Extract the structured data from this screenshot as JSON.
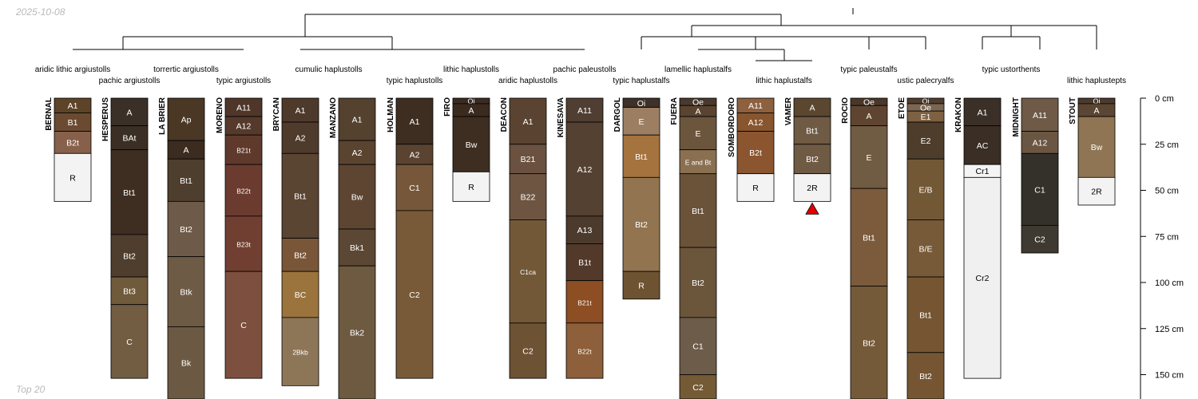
{
  "date_label": "2025-10-08",
  "footer_label": "Top 20",
  "depth_axis": {
    "unit": "cm",
    "max_depth": 170,
    "ticks": [
      {
        "depth": 0,
        "label": "0 cm"
      },
      {
        "depth": 25,
        "label": "25 cm"
      },
      {
        "depth": 50,
        "label": "50 cm"
      },
      {
        "depth": 75,
        "label": "75 cm"
      },
      {
        "depth": 100,
        "label": "100 cm"
      },
      {
        "depth": 125,
        "label": "125 cm"
      },
      {
        "depth": 150,
        "label": "150 cm"
      }
    ]
  },
  "taxa": [
    {
      "label": "aridic lithic argiustolls",
      "row": 1,
      "members": [
        0
      ]
    },
    {
      "label": "pachic argiustolls",
      "row": 2,
      "members": [
        1
      ]
    },
    {
      "label": "torrertic argiustolls",
      "row": 1,
      "members": [
        2
      ]
    },
    {
      "label": "typic argiustolls",
      "row": 2,
      "members": [
        3
      ]
    },
    {
      "label": "cumulic haplustolls",
      "row": 1,
      "members": [
        4,
        5
      ]
    },
    {
      "label": "typic haplustolls",
      "row": 2,
      "members": [
        6
      ]
    },
    {
      "label": "lithic haplustolls",
      "row": 1,
      "members": [
        7
      ]
    },
    {
      "label": "aridic haplustolls",
      "row": 2,
      "members": [
        8
      ]
    },
    {
      "label": "pachic paleustolls",
      "row": 1,
      "members": [
        9
      ]
    },
    {
      "label": "typic haplustalfs",
      "row": 2,
      "members": [
        10
      ]
    },
    {
      "label": "lamellic haplustalfs",
      "row": 1,
      "members": [
        11
      ]
    },
    {
      "label": "lithic haplustalfs",
      "row": 2,
      "members": [
        12,
        13
      ]
    },
    {
      "label": "typic paleustalfs",
      "row": 1,
      "members": [
        14
      ]
    },
    {
      "label": "ustic palecryalfs",
      "row": 2,
      "members": [
        15
      ]
    },
    {
      "label": "typic ustorthents",
      "row": 1,
      "members": [
        16,
        17
      ]
    },
    {
      "label": "lithic haplustepts",
      "row": 2,
      "members": [
        18
      ]
    }
  ],
  "profiles": [
    {
      "name": "BERNAL",
      "horizons": [
        {
          "name": "A1",
          "top": 0,
          "bottom": 8,
          "color": "#5d4328"
        },
        {
          "name": "B1",
          "top": 8,
          "bottom": 18,
          "color": "#6a4a31"
        },
        {
          "name": "B2t",
          "top": 18,
          "bottom": 30,
          "color": "#86604a"
        },
        {
          "name": "R",
          "top": 30,
          "bottom": 56,
          "color": "#f3f3f3"
        }
      ]
    },
    {
      "name": "HESPERUS",
      "horizons": [
        {
          "name": "A",
          "top": 0,
          "bottom": 15,
          "color": "#3a3028"
        },
        {
          "name": "BAt",
          "top": 15,
          "bottom": 28,
          "color": "#3b2f25"
        },
        {
          "name": "Bt1",
          "top": 28,
          "bottom": 74,
          "color": "#3e2e22"
        },
        {
          "name": "Bt2",
          "top": 74,
          "bottom": 97,
          "color": "#4f3e2d"
        },
        {
          "name": "Bt3",
          "top": 97,
          "bottom": 112,
          "color": "#705a3c"
        },
        {
          "name": "C",
          "top": 112,
          "bottom": 152,
          "color": "#725c42"
        }
      ]
    },
    {
      "name": "LA BRIER",
      "horizons": [
        {
          "name": "Ap",
          "top": 0,
          "bottom": 23,
          "color": "#4a3825"
        },
        {
          "name": "A",
          "top": 23,
          "bottom": 33,
          "color": "#3c2c1f"
        },
        {
          "name": "Bt1",
          "top": 33,
          "bottom": 56,
          "color": "#4e3e2e"
        },
        {
          "name": "Bt2",
          "top": 56,
          "bottom": 86,
          "color": "#6d5a48"
        },
        {
          "name": "Btk",
          "top": 86,
          "bottom": 124,
          "color": "#6e5b46"
        },
        {
          "name": "Bk",
          "top": 124,
          "bottom": 165,
          "color": "#6c5943"
        }
      ]
    },
    {
      "name": "MORENO",
      "horizons": [
        {
          "name": "A11",
          "top": 0,
          "bottom": 10,
          "color": "#4f3629"
        },
        {
          "name": "A12",
          "top": 10,
          "bottom": 20,
          "color": "#553a2b"
        },
        {
          "name": "B21t",
          "top": 20,
          "bottom": 36,
          "color": "#5f3a2c"
        },
        {
          "name": "B22t",
          "top": 36,
          "bottom": 64,
          "color": "#6c3b2f"
        },
        {
          "name": "B23t",
          "top": 64,
          "bottom": 94,
          "color": "#713f31"
        },
        {
          "name": "C",
          "top": 94,
          "bottom": 152,
          "color": "#7c4f3e"
        }
      ]
    },
    {
      "name": "BRYCAN",
      "horizons": [
        {
          "name": "A1",
          "top": 0,
          "bottom": 13,
          "color": "#4e3a2b"
        },
        {
          "name": "A2",
          "top": 13,
          "bottom": 30,
          "color": "#4f3b2c"
        },
        {
          "name": "Bt1",
          "top": 30,
          "bottom": 76,
          "color": "#5a4432"
        },
        {
          "name": "Bt2",
          "top": 76,
          "bottom": 94,
          "color": "#7a5638"
        },
        {
          "name": "BC",
          "top": 94,
          "bottom": 119,
          "color": "#9b733c"
        },
        {
          "name": "2Bkb",
          "top": 119,
          "bottom": 156,
          "color": "#8d7658"
        }
      ]
    },
    {
      "name": "MANZANO",
      "horizons": [
        {
          "name": "A1",
          "top": 0,
          "bottom": 23,
          "color": "#54412e"
        },
        {
          "name": "A2",
          "top": 23,
          "bottom": 36,
          "color": "#5a4430"
        },
        {
          "name": "Bw",
          "top": 36,
          "bottom": 71,
          "color": "#5e4532"
        },
        {
          "name": "Bk1",
          "top": 71,
          "bottom": 91,
          "color": "#5b4734"
        },
        {
          "name": "Bk2",
          "top": 91,
          "bottom": 170,
          "color": "#6e5a40"
        }
      ]
    },
    {
      "name": "HOLMAN",
      "horizons": [
        {
          "name": "A1",
          "top": 0,
          "bottom": 25,
          "color": "#3e2e22"
        },
        {
          "name": "A2",
          "top": 25,
          "bottom": 36,
          "color": "#5a4330"
        },
        {
          "name": "C1",
          "top": 36,
          "bottom": 61,
          "color": "#76573a"
        },
        {
          "name": "C2",
          "top": 61,
          "bottom": 152,
          "color": "#785a38"
        }
      ]
    },
    {
      "name": "FIRO",
      "horizons": [
        {
          "name": "Oi",
          "top": 0,
          "bottom": 3,
          "color": "#3a2c22"
        },
        {
          "name": "A",
          "top": 3,
          "bottom": 10,
          "color": "#3b2b1f"
        },
        {
          "name": "Bw",
          "top": 10,
          "bottom": 40,
          "color": "#3d2e21"
        },
        {
          "name": "R",
          "top": 40,
          "bottom": 56,
          "color": "#f3f3f3"
        }
      ]
    },
    {
      "name": "DEACON",
      "horizons": [
        {
          "name": "A1",
          "top": 0,
          "bottom": 25,
          "color": "#5a4431"
        },
        {
          "name": "B21",
          "top": 25,
          "bottom": 41,
          "color": "#6b5140"
        },
        {
          "name": "B22",
          "top": 41,
          "bottom": 66,
          "color": "#6e5542"
        },
        {
          "name": "C1ca",
          "top": 66,
          "bottom": 122,
          "color": "#735838"
        },
        {
          "name": "C2",
          "top": 122,
          "bottom": 152,
          "color": "#6d5234"
        }
      ]
    },
    {
      "name": "KINESAVA",
      "horizons": [
        {
          "name": "A11",
          "top": 0,
          "bottom": 13,
          "color": "#4f3e31"
        },
        {
          "name": "A12",
          "top": 13,
          "bottom": 64,
          "color": "#554131"
        },
        {
          "name": "A13",
          "top": 64,
          "bottom": 79,
          "color": "#4c3a2c"
        },
        {
          "name": "B1t",
          "top": 79,
          "bottom": 99,
          "color": "#53392a"
        },
        {
          "name": "B21t",
          "top": 99,
          "bottom": 122,
          "color": "#8c4e22"
        },
        {
          "name": "B22t",
          "top": 122,
          "bottom": 152,
          "color": "#8d5f3a"
        }
      ]
    },
    {
      "name": "DARGOL",
      "horizons": [
        {
          "name": "Oi",
          "top": 0,
          "bottom": 5,
          "color": "#3e3129"
        },
        {
          "name": "E",
          "top": 5,
          "bottom": 20,
          "color": "#9c7f62"
        },
        {
          "name": "Bt1",
          "top": 20,
          "bottom": 43,
          "color": "#a5733e"
        },
        {
          "name": "Bt2",
          "top": 43,
          "bottom": 94,
          "color": "#927450"
        },
        {
          "name": "R",
          "top": 94,
          "bottom": 109,
          "color": "#6e5332"
        }
      ]
    },
    {
      "name": "FUERA",
      "horizons": [
        {
          "name": "Oe",
          "top": 0,
          "bottom": 4,
          "color": "#49392c"
        },
        {
          "name": "A",
          "top": 4,
          "bottom": 10,
          "color": "#5a4430"
        },
        {
          "name": "E",
          "top": 10,
          "bottom": 28,
          "color": "#6b553d"
        },
        {
          "name": "E and Bt",
          "top": 28,
          "bottom": 41,
          "color": "#8a6f51"
        },
        {
          "name": "Bt1",
          "top": 41,
          "bottom": 81,
          "color": "#6a5339"
        },
        {
          "name": "Bt2",
          "top": 81,
          "bottom": 119,
          "color": "#6b553b"
        },
        {
          "name": "C1",
          "top": 119,
          "bottom": 150,
          "color": "#6d5c4a"
        },
        {
          "name": "C2",
          "top": 150,
          "bottom": 170,
          "color": "#745a35"
        }
      ]
    },
    {
      "name": "SOMBORDORO",
      "horizons": [
        {
          "name": "A11",
          "top": 0,
          "bottom": 8,
          "color": "#8d603e"
        },
        {
          "name": "A12",
          "top": 8,
          "bottom": 18,
          "color": "#87552e"
        },
        {
          "name": "B2t",
          "top": 18,
          "bottom": 41,
          "color": "#8a552f"
        },
        {
          "name": "R",
          "top": 41,
          "bottom": 56,
          "color": "#f3f3f3"
        }
      ]
    },
    {
      "name": "VAMER",
      "horizons": [
        {
          "name": "A",
          "top": 0,
          "bottom": 10,
          "color": "#5b4630"
        },
        {
          "name": "Bt1",
          "top": 10,
          "bottom": 25,
          "color": "#6f5a44"
        },
        {
          "name": "Bt2",
          "top": 25,
          "bottom": 41,
          "color": "#6f5a44"
        },
        {
          "name": "2R",
          "top": 41,
          "bottom": 56,
          "color": "#f3f3f3"
        }
      ]
    },
    {
      "name": "ROCIO",
      "horizons": [
        {
          "name": "Oe",
          "top": 0,
          "bottom": 4,
          "color": "#4a3729"
        },
        {
          "name": "A",
          "top": 4,
          "bottom": 15,
          "color": "#5f4531"
        },
        {
          "name": "E",
          "top": 15,
          "bottom": 49,
          "color": "#705b43"
        },
        {
          "name": "Bt1",
          "top": 49,
          "bottom": 102,
          "color": "#7b5b3b"
        },
        {
          "name": "Bt2",
          "top": 102,
          "bottom": 170,
          "color": "#755a3a"
        }
      ]
    },
    {
      "name": "ETOE",
      "horizons": [
        {
          "name": "Oi",
          "top": 0,
          "bottom": 3,
          "color": "#4f3d2e"
        },
        {
          "name": "Oe",
          "top": 3,
          "bottom": 7,
          "color": "#7c6650"
        },
        {
          "name": "E1",
          "top": 7,
          "bottom": 13,
          "color": "#7e6142"
        },
        {
          "name": "E2",
          "top": 13,
          "bottom": 33,
          "color": "#4f3d2c"
        },
        {
          "name": "E/B",
          "top": 33,
          "bottom": 66,
          "color": "#735836"
        },
        {
          "name": "B/E",
          "top": 66,
          "bottom": 97,
          "color": "#775a38"
        },
        {
          "name": "Bt1",
          "top": 97,
          "bottom": 138,
          "color": "#765632"
        },
        {
          "name": "Bt2",
          "top": 138,
          "bottom": 170,
          "color": "#765632"
        }
      ]
    },
    {
      "name": "KRAKON",
      "horizons": [
        {
          "name": "A1",
          "top": 0,
          "bottom": 15,
          "color": "#3b3027"
        },
        {
          "name": "AC",
          "top": 15,
          "bottom": 36,
          "color": "#3a2e25"
        },
        {
          "name": "Cr1",
          "top": 36,
          "bottom": 43,
          "color": "#f4f4f4"
        },
        {
          "name": "Cr2",
          "top": 43,
          "bottom": 152,
          "color": "#f0f0f0"
        }
      ]
    },
    {
      "name": "MIDNIGHT",
      "horizons": [
        {
          "name": "A11",
          "top": 0,
          "bottom": 18,
          "color": "#6e5a46"
        },
        {
          "name": "A12",
          "top": 18,
          "bottom": 30,
          "color": "#6a5642"
        },
        {
          "name": "C1",
          "top": 30,
          "bottom": 69,
          "color": "#34302a"
        },
        {
          "name": "C2",
          "top": 69,
          "bottom": 84,
          "color": "#3f3a31"
        }
      ]
    },
    {
      "name": "STOUT",
      "horizons": [
        {
          "name": "Oi",
          "top": 0,
          "bottom": 3,
          "color": "#4a3b2d"
        },
        {
          "name": "A",
          "top": 3,
          "bottom": 10,
          "color": "#5a4632"
        },
        {
          "name": "Bw",
          "top": 10,
          "bottom": 43,
          "color": "#8f7553"
        },
        {
          "name": "2R",
          "top": 43,
          "bottom": 58,
          "color": "#f3f3f3"
        }
      ]
    }
  ],
  "marker": {
    "profile_index": 13,
    "color": "#e00000",
    "shape": "triangle"
  },
  "colors": {
    "line": "#000000",
    "dark_text": "#000000",
    "light_text": "#ffffff",
    "axis": "#000000"
  }
}
